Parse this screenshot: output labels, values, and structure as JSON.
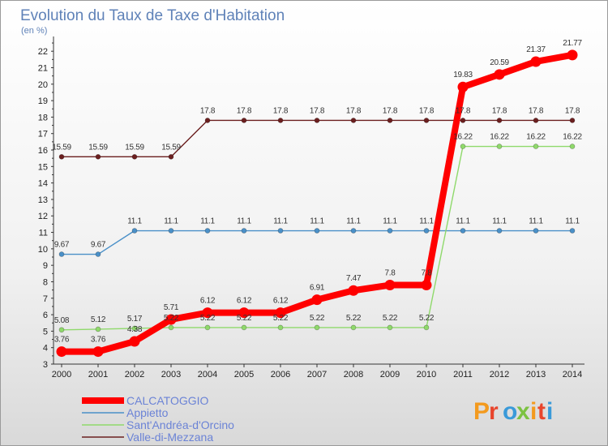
{
  "chart_data": {
    "type": "line",
    "title": "Evolution du Taux de Taxe d'Habitation",
    "subtitle": "(en %)",
    "x": [
      "2000",
      "2001",
      "2002",
      "2003",
      "2004",
      "2005",
      "2006",
      "2007",
      "2008",
      "2009",
      "2010",
      "2011",
      "2012",
      "2013",
      "2014"
    ],
    "y_ticks": [
      "3",
      "4",
      "5",
      "6",
      "7",
      "8",
      "9",
      "10",
      "11",
      "12",
      "13",
      "14",
      "15",
      "16",
      "17",
      "18",
      "19",
      "20",
      "21",
      "22"
    ],
    "ylim": [
      3,
      22.6
    ],
    "grid": false,
    "legend_position": "bottom-left",
    "series": [
      {
        "name": "CALCATOGGIO",
        "color": "#ff0000",
        "values": [
          3.76,
          3.76,
          4.38,
          5.71,
          6.12,
          6.12,
          6.12,
          6.91,
          7.47,
          7.8,
          7.8,
          19.83,
          20.59,
          21.37,
          21.77
        ],
        "labels": [
          "3.76",
          "3.76",
          "4.38",
          "5.71",
          "6.12",
          "6.12",
          "6.12",
          "6.91",
          "7.47",
          "7.8",
          "7.8",
          "19.83",
          "20.59",
          "21.37",
          "21.77"
        ]
      },
      {
        "name": "Appietto",
        "color": "#4a90c8",
        "values": [
          9.67,
          9.67,
          11.1,
          11.1,
          11.1,
          11.1,
          11.1,
          11.1,
          11.1,
          11.1,
          11.1,
          11.1,
          11.1,
          11.1,
          11.1
        ],
        "labels": [
          "9.67",
          "9.67",
          "11.1",
          "11.1",
          "11.1",
          "11.1",
          "11.1",
          "11.1",
          "11.1",
          "11.1",
          "11.1",
          "11.1",
          "11.1",
          "11.1",
          "11.1"
        ]
      },
      {
        "name": "Sant'Andréa-d'Orcino",
        "color": "#8fd96b",
        "values": [
          5.08,
          5.12,
          5.17,
          5.22,
          5.22,
          5.22,
          5.22,
          5.22,
          5.22,
          5.22,
          5.22,
          16.22,
          16.22,
          16.22,
          16.22
        ],
        "labels": [
          "5.08",
          "5.12",
          "5.17",
          "5.22",
          "5.22",
          "5.22",
          "5.22",
          "5.22",
          "5.22",
          "5.22",
          "5.22",
          "16.22",
          "16.22",
          "16.22",
          "16.22"
        ]
      },
      {
        "name": "Valle-di-Mezzana",
        "color": "#6b1f1f",
        "values": [
          15.59,
          15.59,
          15.59,
          15.59,
          17.8,
          17.8,
          17.8,
          17.8,
          17.8,
          17.8,
          17.8,
          17.8,
          17.8,
          17.8,
          17.8
        ],
        "labels": [
          "15.59",
          "15.59",
          "15.59",
          "15.59",
          "17.8",
          "17.8",
          "17.8",
          "17.8",
          "17.8",
          "17.8",
          "17.8",
          "17.8",
          "17.8",
          "17.8",
          "17.8"
        ]
      }
    ]
  },
  "logo": {
    "text": "Proxiti",
    "letter_colors": [
      "#f39a1e",
      "#e8452c",
      "#3a9ad9",
      "#7cc242",
      "#f39a1e",
      "#e8452c",
      "#3a9ad9"
    ]
  }
}
